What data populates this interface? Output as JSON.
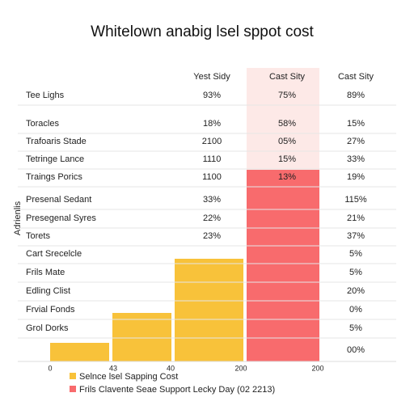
{
  "header": {
    "title": "Whitelown anabig lsel sppot cost"
  },
  "table": {
    "columns": [
      "Yest Sidy",
      "Cast Sity",
      "Cast Sity"
    ],
    "rows": [
      {
        "label": "Tee Lighs",
        "cells": [
          "93%",
          "75%",
          "89%"
        ]
      },
      {
        "label": "Toracles",
        "cells": [
          "18%",
          "58%",
          "15%"
        ]
      },
      {
        "label": "Trafoaris Stade",
        "cells": [
          "2100",
          "05%",
          "27%"
        ]
      },
      {
        "label": "Tetringe Lance",
        "cells": [
          "1110",
          "15%",
          "33%"
        ]
      },
      {
        "label": "Traings Porics",
        "cells": [
          "1100",
          "13%",
          "19%"
        ]
      },
      {
        "label": "Presenal Sedant",
        "cells": [
          "33%",
          null,
          "115%"
        ]
      },
      {
        "label": "Presegenal Syres",
        "cells": [
          "22%",
          null,
          "21%"
        ]
      },
      {
        "label": "Torets",
        "cells": [
          "23%",
          null,
          "37%"
        ]
      },
      {
        "label": "Cart Srecelcle",
        "cells": [
          null,
          null,
          "5%"
        ]
      },
      {
        "label": "Frils Mate",
        "cells": [
          null,
          null,
          "5%"
        ]
      },
      {
        "label": "Edling Clist",
        "cells": [
          null,
          null,
          "20%"
        ]
      },
      {
        "label": "Frvial Fonds",
        "cells": [
          null,
          null,
          "0%"
        ]
      },
      {
        "label": "Grol Dorks",
        "cells": [
          null,
          null,
          "5%"
        ]
      },
      {
        "label": null,
        "cells": [
          null,
          null,
          "00%"
        ]
      }
    ]
  },
  "axis": {
    "y_label": "Adrienlis",
    "x_labels": [
      "0",
      "43",
      "40",
      "200",
      "200"
    ]
  },
  "legend": [
    "Selnce lsel Sapping Cost",
    "Frils Clavente Seae Support Lecky Day (02 2213)"
  ]
}
